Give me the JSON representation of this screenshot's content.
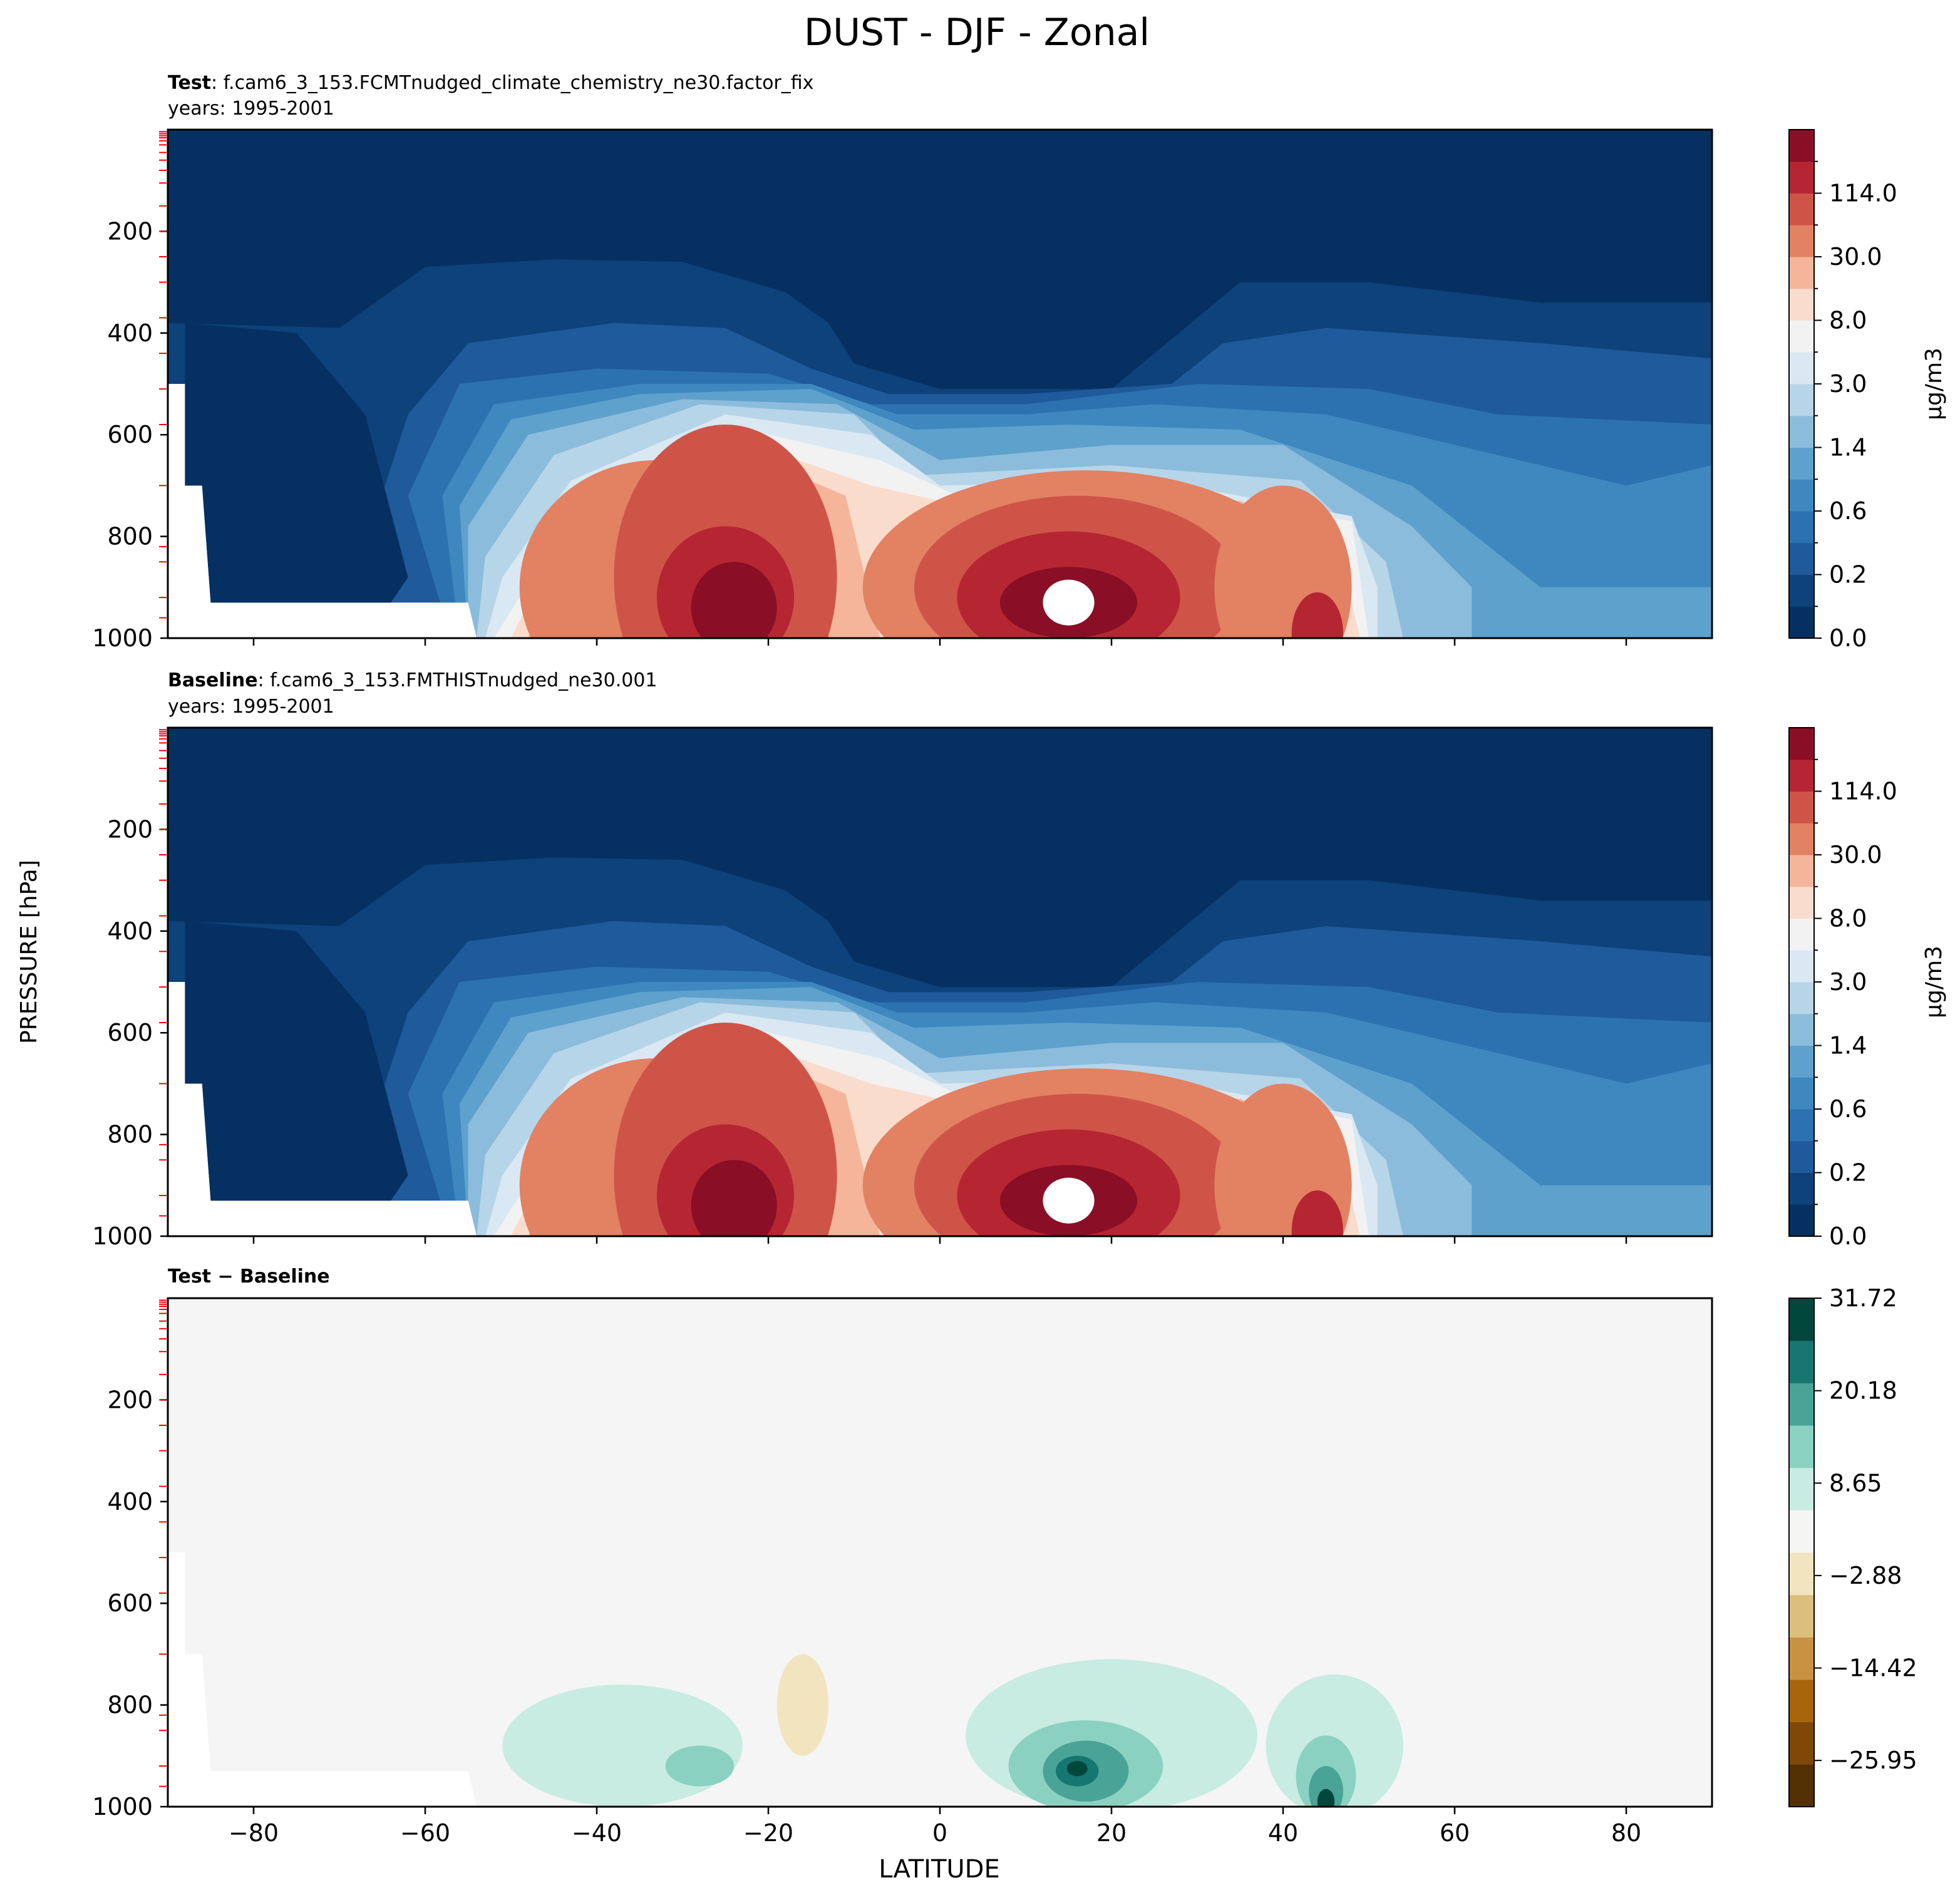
{
  "title": "DUST - DJF - Zonal",
  "xlabel": "LATITUDE",
  "ylabel": "PRESSURE [hPa]",
  "chart_data": [
    {
      "type": "heatmap",
      "panel": "test",
      "label_bold": "Test",
      "label_text": ": f.cam6_3_153.FCMTnudged_climate_chemistry_ne30.factor_fix",
      "years": "years: 1995-2001",
      "xlim": [
        -90,
        90
      ],
      "ylim": [
        1000,
        0
      ],
      "xticks": [
        -80,
        -60,
        -40,
        -20,
        0,
        20,
        40,
        60,
        80
      ],
      "yticks": [
        200,
        400,
        600,
        800,
        1000
      ],
      "colorbar": {
        "unit": "μg/m3",
        "tick_labels": [
          "0.0",
          "0.2",
          "0.6",
          "1.4",
          "3.0",
          "8.0",
          "30.0",
          "114.0"
        ],
        "levels_count": 15
      },
      "features": [
        {
          "lat": -25,
          "p": 900,
          "value": "30-114"
        },
        {
          "lat": 15,
          "p": 920,
          "value": ">114"
        },
        {
          "lat": 45,
          "p": 980,
          "value": "30-114"
        }
      ]
    },
    {
      "type": "heatmap",
      "panel": "baseline",
      "label_bold": "Baseline",
      "label_text": ": f.cam6_3_153.FMTHISTnudged_ne30.001",
      "years": "years: 1995-2001",
      "xlim": [
        -90,
        90
      ],
      "ylim": [
        1000,
        0
      ],
      "xticks": [
        -80,
        -60,
        -40,
        -20,
        0,
        20,
        40,
        60,
        80
      ],
      "yticks": [
        200,
        400,
        600,
        800,
        1000
      ],
      "colorbar": {
        "unit": "μg/m3",
        "tick_labels": [
          "0.0",
          "0.2",
          "0.6",
          "1.4",
          "3.0",
          "8.0",
          "30.0",
          "114.0"
        ],
        "levels_count": 15
      }
    },
    {
      "type": "heatmap",
      "panel": "diff",
      "label_bold": "Test − Baseline",
      "xlim": [
        -90,
        90
      ],
      "ylim": [
        1000,
        0
      ],
      "xticks": [
        -80,
        -60,
        -40,
        -20,
        0,
        20,
        40,
        60,
        80
      ],
      "yticks": [
        200,
        400,
        600,
        800,
        1000
      ],
      "colorbar": {
        "tick_labels": [
          "−25.95",
          "−14.42",
          "−2.88",
          "8.65",
          "20.18",
          "31.72"
        ],
        "range": [
          -31.72,
          31.72
        ],
        "levels_count": 11
      },
      "features": [
        {
          "lat": 16,
          "p": 920,
          "value": 25
        },
        {
          "lat": 45,
          "p": 960,
          "value": 25
        },
        {
          "lat": -28,
          "p": 920,
          "value": 9
        },
        {
          "lat": -16,
          "p": 780,
          "value": -4
        }
      ]
    }
  ],
  "colors": {
    "seq": [
      "#053061",
      "#0d427a",
      "#1f5a9a",
      "#2c72b1",
      "#3e88bf",
      "#5ea1cd",
      "#8cbcdb",
      "#b7d5e8",
      "#d9e8f2",
      "#f2f2f2",
      "#fadccc",
      "#f4b59a",
      "#e38163",
      "#cf5448",
      "#b52632",
      "#8a0e25"
    ],
    "div": [
      "#543005",
      "#7f4807",
      "#a8650c",
      "#c99142",
      "#dcbf7c",
      "#f3e4c0",
      "#f5f5f4",
      "#c8ebe2",
      "#8bd1c2",
      "#4aa397",
      "#167672",
      "#01473c"
    ],
    "tick_red": "#ff0000"
  }
}
